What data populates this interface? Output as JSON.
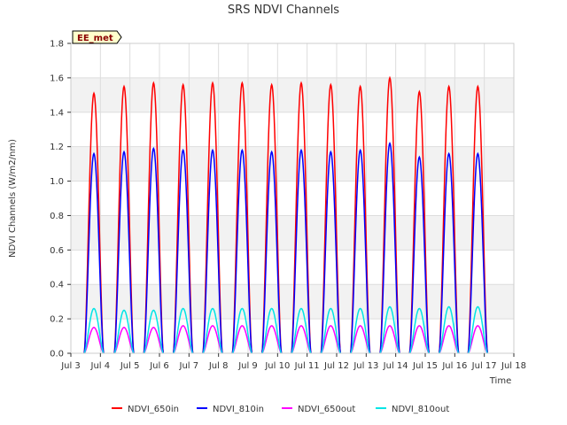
{
  "chart_data": {
    "type": "line",
    "title": "SRS NDVI Channels",
    "xlabel": "Time",
    "ylabel": "NDVI Channels (W/m2/nm)",
    "tag": "EE_met",
    "xlim": [
      3,
      18
    ],
    "ylim": [
      0.0,
      1.8
    ],
    "x_ticks": [
      3,
      4,
      5,
      6,
      7,
      8,
      9,
      10,
      11,
      12,
      13,
      14,
      15,
      16,
      17,
      18
    ],
    "x_tick_labels": [
      "Jul 3",
      "Jul 4",
      "Jul 5",
      "Jul 6",
      "Jul 7",
      "Jul 8",
      "Jul 9",
      "Jul 10",
      "Jul 11",
      "Jul 12",
      "Jul 13",
      "Jul 14",
      "Jul 15",
      "Jul 16",
      "Jul 17",
      "Jul 18"
    ],
    "y_ticks": [
      0.0,
      0.2,
      0.4,
      0.6,
      0.8,
      1.0,
      1.2,
      1.4,
      1.6,
      1.8
    ],
    "y_tick_labels": [
      "0.0",
      "0.2",
      "0.4",
      "0.6",
      "0.8",
      "1.0",
      "1.2",
      "1.4",
      "1.6",
      "1.8"
    ],
    "grid": true,
    "background_bands": true,
    "legend_position": "bottom",
    "day_centers": [
      3.78,
      4.8,
      5.8,
      6.8,
      7.8,
      8.8,
      9.8,
      10.8,
      11.8,
      12.8,
      13.8,
      14.8,
      15.8,
      16.78
    ],
    "day_half_width": 0.33,
    "series": [
      {
        "name": "NDVI_650in",
        "color": "#ff0000",
        "peaks": [
          1.51,
          1.55,
          1.57,
          1.56,
          1.57,
          1.57,
          1.56,
          1.57,
          1.56,
          1.55,
          1.6,
          1.52,
          1.55,
          1.55
        ]
      },
      {
        "name": "NDVI_810in",
        "color": "#0000ff",
        "peaks": [
          1.16,
          1.17,
          1.19,
          1.18,
          1.18,
          1.18,
          1.17,
          1.18,
          1.17,
          1.18,
          1.22,
          1.14,
          1.16,
          1.16
        ]
      },
      {
        "name": "NDVI_650out",
        "color": "#ff00ff",
        "peaks": [
          0.15,
          0.15,
          0.15,
          0.16,
          0.16,
          0.16,
          0.16,
          0.16,
          0.16,
          0.16,
          0.16,
          0.16,
          0.16,
          0.16
        ]
      },
      {
        "name": "NDVI_810out",
        "color": "#00e5e5",
        "peaks": [
          0.26,
          0.25,
          0.25,
          0.26,
          0.26,
          0.26,
          0.26,
          0.26,
          0.26,
          0.26,
          0.27,
          0.26,
          0.27,
          0.27
        ]
      }
    ]
  }
}
